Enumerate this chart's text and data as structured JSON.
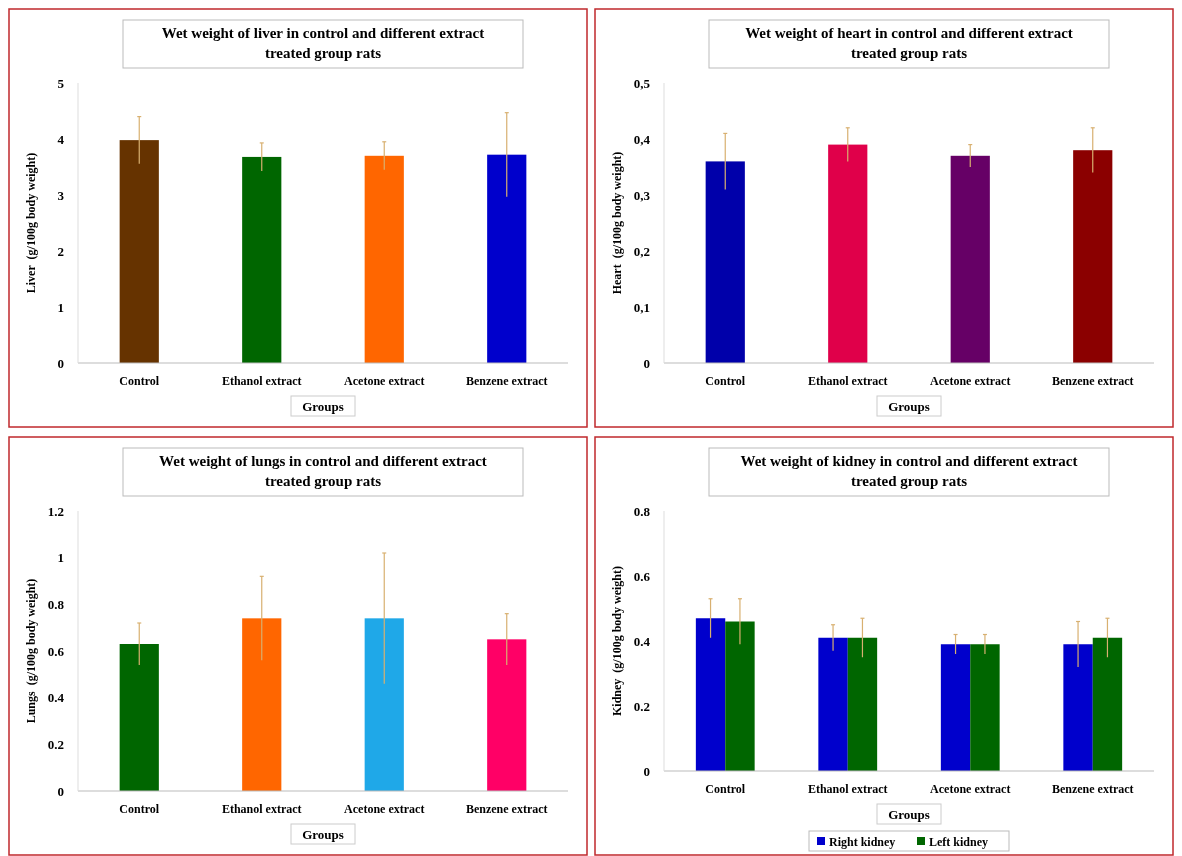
{
  "chart_data": [
    {
      "type": "bar",
      "title": "Wet weight of liver in control and different extract treated group rats",
      "xlabel": "Groups",
      "ylabel": "Liver  (g/100g body weight)",
      "categories": [
        "Control",
        "Ethanol extract",
        "Acetone extract",
        "Benzene extract"
      ],
      "values": [
        3.98,
        3.68,
        3.7,
        3.72
      ],
      "errors": [
        0.42,
        0.25,
        0.25,
        0.75
      ],
      "colors": [
        "#663300",
        "#006600",
        "#ff6600",
        "#0000cc"
      ],
      "ylim": [
        0,
        5
      ],
      "yticks": [
        0,
        1,
        2,
        3,
        4,
        5
      ],
      "grid": false,
      "legend": false
    },
    {
      "type": "bar",
      "title": "Wet weight of heart in control and different extract treated group rats",
      "xlabel": "Groups",
      "ylabel": "Heart  (g/100g body weight)",
      "categories": [
        "Control",
        "Ethanol extract",
        "Acetone extract",
        "Benzene extract"
      ],
      "values": [
        0.36,
        0.39,
        0.37,
        0.38
      ],
      "errors": [
        0.05,
        0.03,
        0.02,
        0.04
      ],
      "colors": [
        "#0000aa",
        "#e0004a",
        "#660066",
        "#8b0000"
      ],
      "ylim": [
        0,
        0.5
      ],
      "yticks": [
        {
          "value": 0,
          "label": "0"
        },
        {
          "value": 0.1,
          "label": "0,1"
        },
        {
          "value": 0.2,
          "label": "0,2"
        },
        {
          "value": 0.3,
          "label": "0,3"
        },
        {
          "value": 0.4,
          "label": "0,4"
        },
        {
          "value": 0.5,
          "label": "0,5"
        }
      ],
      "grid": false,
      "legend": false
    },
    {
      "type": "bar",
      "title": "Wet weight of lungs in control and different extract treated group rats",
      "xlabel": "Groups",
      "ylabel": "Lungs  (g/100g body weight)",
      "categories": [
        "Control",
        "Ethanol extract",
        "Acetone extract",
        "Benzene extract"
      ],
      "values": [
        0.63,
        0.74,
        0.74,
        0.65
      ],
      "errors": [
        0.09,
        0.18,
        0.28,
        0.11
      ],
      "colors": [
        "#006600",
        "#ff6600",
        "#1fa8e8",
        "#ff0066"
      ],
      "ylim": [
        0,
        1.2
      ],
      "yticks": [
        0,
        0.2,
        0.4,
        0.6,
        0.8,
        1,
        1.2
      ],
      "grid": false,
      "legend": false
    },
    {
      "type": "bar",
      "title": "Wet weight of kidney in control and different extract treated group rats",
      "xlabel": "Groups",
      "ylabel": "Kidney  (g/100g body weight)",
      "categories": [
        "Control",
        "Ethanol extract",
        "Acetone extract",
        "Benzene extract"
      ],
      "series": [
        {
          "name": "Right kidney",
          "color": "#0000cc",
          "values": [
            0.47,
            0.41,
            0.39,
            0.39
          ],
          "errors": [
            0.06,
            0.04,
            0.03,
            0.07
          ]
        },
        {
          "name": "Left kidney",
          "color": "#006600",
          "values": [
            0.46,
            0.41,
            0.39,
            0.41
          ],
          "errors": [
            0.07,
            0.06,
            0.03,
            0.06
          ]
        }
      ],
      "ylim": [
        0,
        0.8
      ],
      "yticks": [
        0,
        0.2,
        0.4,
        0.6,
        0.8
      ],
      "grid": false,
      "legend": "bottom"
    }
  ]
}
